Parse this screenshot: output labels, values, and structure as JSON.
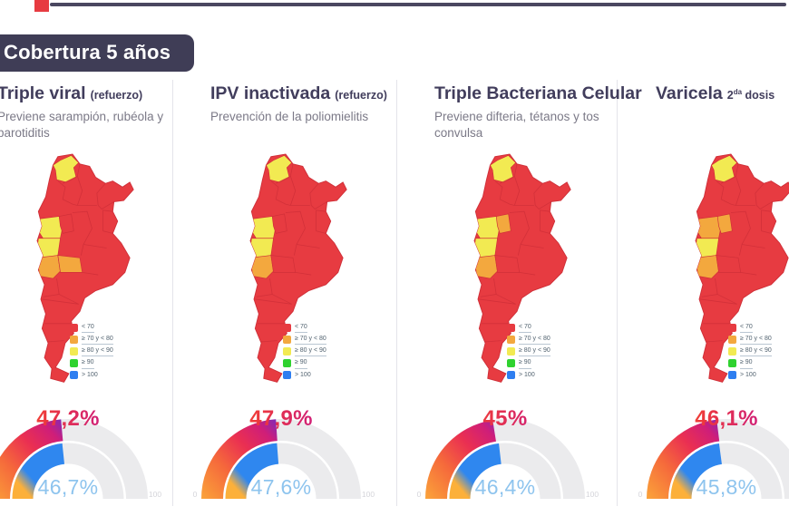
{
  "badge": "Cobertura 5 años",
  "legend": {
    "items": [
      {
        "label": "< 70",
        "color": "#e73b41",
        "underline": true
      },
      {
        "label": "≥ 70 y < 80",
        "color": "#f3a83e",
        "underline": true
      },
      {
        "label": "≥ 80 y < 90",
        "color": "#f2ea52",
        "underline": true
      },
      {
        "label": "≥ 90",
        "color": "#2fd22f",
        "underline": true
      },
      {
        "label": "> 100",
        "color": "#2e7ef0",
        "underline": false
      }
    ]
  },
  "map_palette": {
    "lt70": "#e73b41",
    "70-80": "#f3a83e",
    "80-90": "#f2ea52",
    "90": "#2fd22f",
    "100": "#2e7ef0",
    "border": "#cf2f38"
  },
  "panels": [
    {
      "title": "Triple viral",
      "suffix_pre": "(refuerzo)",
      "suffix_sup": "",
      "suffix_post": "",
      "subtitle": "Previene sarampión, rubéola y parotiditis",
      "gauge": {
        "outer_value": 47.2,
        "outer_label": "47,2%",
        "inner_value": 46.7,
        "inner_label": "46,7%",
        "min": "0",
        "max": "100"
      },
      "regions": {
        "norte": "80-90",
        "rioja": "80-90",
        "catamarca": "lt70",
        "sanjuan": "80-90",
        "mendoza": "70-80",
        "lapampa": "70-80"
      }
    },
    {
      "title": "IPV inactivada",
      "suffix_pre": "(refuerzo)",
      "suffix_sup": "",
      "suffix_post": "",
      "subtitle": "Prevención de la poliomielitis",
      "gauge": {
        "outer_value": 47.9,
        "outer_label": "47,9%",
        "inner_value": 47.6,
        "inner_label": "47,6%",
        "min": "0",
        "max": "100"
      },
      "regions": {
        "norte": "80-90",
        "rioja": "80-90",
        "catamarca": "lt70",
        "sanjuan": "80-90",
        "mendoza": "70-80",
        "lapampa": "lt70"
      }
    },
    {
      "title": "Triple Bacteriana Celular",
      "suffix_pre": "",
      "suffix_sup": "",
      "suffix_post": "",
      "subtitle": "Previene difteria, tétanos y tos convulsa",
      "gauge": {
        "outer_value": 45,
        "outer_label": "45%",
        "inner_value": 46.4,
        "inner_label": "46,4%",
        "min": "0",
        "max": "100"
      },
      "regions": {
        "norte": "80-90",
        "rioja": "80-90",
        "catamarca": "70-80",
        "sanjuan": "80-90",
        "mendoza": "70-80",
        "lapampa": "lt70"
      }
    },
    {
      "title": "Varicela",
      "suffix_pre": "2",
      "suffix_sup": "da",
      "suffix_post": " dosis",
      "subtitle": "",
      "gauge": {
        "outer_value": 46.1,
        "outer_label": "46,1%",
        "inner_value": 45.8,
        "inner_label": "45,8%",
        "min": "0",
        "max": "100"
      },
      "regions": {
        "norte": "80-90",
        "rioja": "70-80",
        "catamarca": "70-80",
        "sanjuan": "80-90",
        "mendoza": "70-80",
        "lapampa": "lt70"
      }
    }
  ],
  "chart_data": [
    {
      "type": "pie",
      "variant": "half-donut-gauge",
      "title": "Triple viral (refuerzo)",
      "range": [
        0,
        100
      ],
      "series": [
        {
          "name": "cobertura-anillo-externo",
          "value": 47.2,
          "label": "47,2%"
        },
        {
          "name": "cobertura-anillo-interno",
          "value": 46.7,
          "label": "46,7%"
        }
      ],
      "map": {
        "type": "heatmap",
        "variant": "choropleth-argentina",
        "buckets": [
          "< 70",
          "≥ 70 y < 80",
          "≥ 80 y < 90",
          "≥ 90",
          "> 100"
        ],
        "regions": {
          "norte": "≥ 80 y < 90",
          "rioja": "≥ 80 y < 90",
          "sanjuan": "≥ 80 y < 90",
          "mendoza": "≥ 70 y < 80",
          "lapampa": "≥ 70 y < 80",
          "resto": "< 70"
        }
      }
    },
    {
      "type": "pie",
      "variant": "half-donut-gauge",
      "title": "IPV inactivada (refuerzo)",
      "range": [
        0,
        100
      ],
      "series": [
        {
          "name": "cobertura-anillo-externo",
          "value": 47.9,
          "label": "47,9%"
        },
        {
          "name": "cobertura-anillo-interno",
          "value": 47.6,
          "label": "47,6%"
        }
      ],
      "map": {
        "type": "heatmap",
        "variant": "choropleth-argentina",
        "buckets": [
          "< 70",
          "≥ 70 y < 80",
          "≥ 80 y < 90",
          "≥ 90",
          "> 100"
        ],
        "regions": {
          "norte": "≥ 80 y < 90",
          "rioja": "≥ 80 y < 90",
          "sanjuan": "≥ 80 y < 90",
          "mendoza": "≥ 70 y < 80",
          "resto": "< 70"
        }
      }
    },
    {
      "type": "pie",
      "variant": "half-donut-gauge",
      "title": "Triple Bacteriana Celular",
      "range": [
        0,
        100
      ],
      "series": [
        {
          "name": "cobertura-anillo-externo",
          "value": 45,
          "label": "45%"
        },
        {
          "name": "cobertura-anillo-interno",
          "value": 46.4,
          "label": "46,4%"
        }
      ],
      "map": {
        "type": "heatmap",
        "variant": "choropleth-argentina",
        "buckets": [
          "< 70",
          "≥ 70 y < 80",
          "≥ 80 y < 90",
          "≥ 90",
          "> 100"
        ],
        "regions": {
          "norte": "≥ 80 y < 90",
          "rioja": "≥ 80 y < 90",
          "catamarca": "≥ 70 y < 80",
          "sanjuan": "≥ 80 y < 90",
          "mendoza": "≥ 70 y < 80",
          "resto": "< 70"
        }
      }
    },
    {
      "type": "pie",
      "variant": "half-donut-gauge",
      "title": "Varicela 2da dosis",
      "range": [
        0,
        100
      ],
      "series": [
        {
          "name": "cobertura-anillo-externo",
          "value": 46.1,
          "label": "46,1%"
        },
        {
          "name": "cobertura-anillo-interno",
          "value": 45.8,
          "label": "45,8%"
        }
      ],
      "map": {
        "type": "heatmap",
        "variant": "choropleth-argentina",
        "buckets": [
          "< 70",
          "≥ 70 y < 80",
          "≥ 80 y < 90",
          "≥ 90",
          "> 100"
        ],
        "regions": {
          "norte": "≥ 80 y < 90",
          "rioja": "≥ 70 y < 80",
          "catamarca": "≥ 70 y < 80",
          "sanjuan": "≥ 80 y < 90",
          "mendoza": "≥ 70 y < 80",
          "resto": "< 70"
        }
      }
    }
  ],
  "gauge_style": {
    "track_color": "#ebebed",
    "inner_arc_color": "#2f87ef",
    "outer_arc_gradient": [
      "#fcb03a",
      "#f5693b",
      "#ea2f52",
      "#cf1e79",
      "#5b2fd6"
    ],
    "tick_color": "#d5d5da",
    "bottom_label_color": "#8ec4ee"
  }
}
